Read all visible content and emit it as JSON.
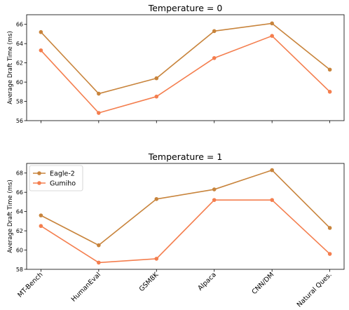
{
  "chart_data": [
    {
      "type": "line",
      "title": "Temperature = 0",
      "xlabel": "",
      "ylabel": "Average Draft Time (ms)",
      "categories": [
        "MT-Bench",
        "HumanEval",
        "GSM8K",
        "Alpaca",
        "CNN/DM",
        "Natural Ques."
      ],
      "show_xtick_labels": false,
      "ylim": [
        56,
        67
      ],
      "yticks": [
        56,
        58,
        60,
        62,
        64,
        66
      ],
      "grid": false,
      "legend": "none",
      "series": [
        {
          "name": "Eagle-2",
          "color": "#c8843c",
          "values": [
            65.2,
            58.8,
            60.4,
            65.3,
            66.1,
            61.3
          ]
        },
        {
          "name": "Gumiho",
          "color": "#f47e4e",
          "values": [
            63.3,
            56.8,
            58.5,
            62.5,
            64.8,
            59.0
          ]
        }
      ]
    },
    {
      "type": "line",
      "title": "Temperature = 1",
      "xlabel": "",
      "ylabel": "Average Draft Time (ms)",
      "categories": [
        "MT-Bench",
        "HumanEval",
        "GSM8K",
        "Alpaca",
        "CNN/DM",
        "Natural Ques."
      ],
      "show_xtick_labels": true,
      "ylim": [
        58,
        69
      ],
      "yticks": [
        58,
        60,
        62,
        64,
        66,
        68
      ],
      "grid": false,
      "legend": "top-left",
      "series": [
        {
          "name": "Eagle-2",
          "color": "#c8843c",
          "values": [
            63.6,
            60.5,
            65.3,
            66.3,
            68.3,
            62.3
          ]
        },
        {
          "name": "Gumiho",
          "color": "#f47e4e",
          "values": [
            62.5,
            58.7,
            59.1,
            65.2,
            65.2,
            59.6
          ]
        }
      ]
    }
  ]
}
